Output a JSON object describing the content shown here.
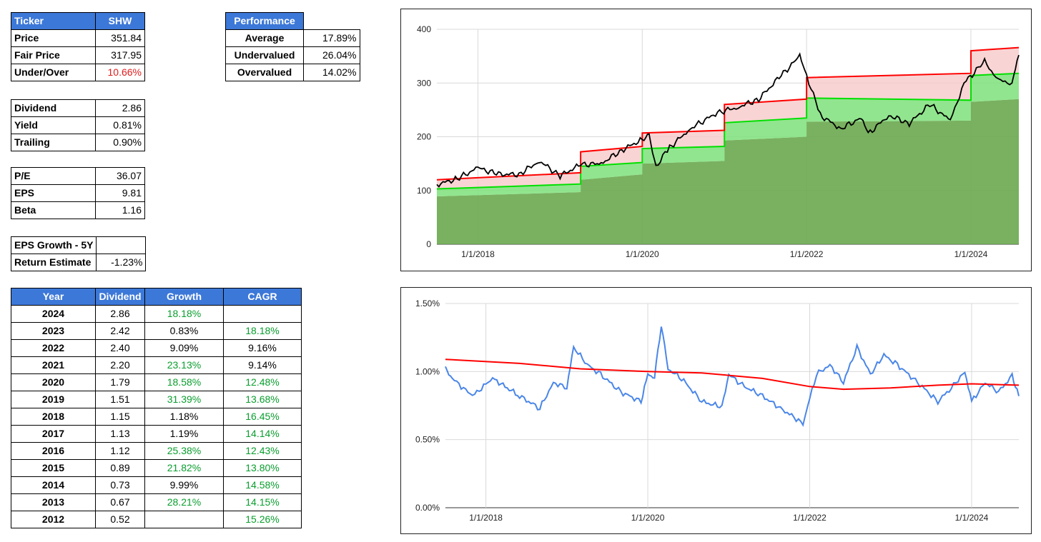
{
  "ticker_table": {
    "header": [
      "Ticker",
      "SHW"
    ],
    "rows": [
      {
        "label": "Price",
        "value": "351.84"
      },
      {
        "label": "Fair Price",
        "value": "317.95"
      },
      {
        "label": "Under/Over",
        "value": "10.66%"
      }
    ]
  },
  "performance_table": {
    "header": "Performance",
    "rows": [
      {
        "label": "Average",
        "value": "17.89%"
      },
      {
        "label": "Undervalued",
        "value": "26.04%"
      },
      {
        "label": "Overvalued",
        "value": "14.02%"
      }
    ]
  },
  "dividend_table": {
    "rows": [
      {
        "label": "Dividend",
        "value": "2.86"
      },
      {
        "label": "Yield",
        "value": "0.81%"
      },
      {
        "label": "Trailing",
        "value": "0.90%"
      }
    ]
  },
  "valuation_table": {
    "rows": [
      {
        "label": "P/E",
        "value": "36.07"
      },
      {
        "label": "EPS",
        "value": "9.81"
      },
      {
        "label": "Beta",
        "value": "1.16"
      }
    ]
  },
  "growth_table": {
    "rows": [
      {
        "label": "EPS Growth - 5Y",
        "value": ""
      },
      {
        "label": "Return Estimate",
        "value": "-1.23%"
      }
    ]
  },
  "history_table": {
    "headers": [
      "Year",
      "Dividend",
      "Growth",
      "CAGR"
    ],
    "rows": [
      {
        "year": "2024",
        "dividend": "2.86",
        "growth": "18.18%",
        "cagr": ""
      },
      {
        "year": "2023",
        "dividend": "2.42",
        "growth": "0.83%",
        "cagr": "18.18%"
      },
      {
        "year": "2022",
        "dividend": "2.40",
        "growth": "9.09%",
        "cagr": "9.16%"
      },
      {
        "year": "2021",
        "dividend": "2.20",
        "growth": "23.13%",
        "cagr": "9.14%"
      },
      {
        "year": "2020",
        "dividend": "1.79",
        "growth": "18.58%",
        "cagr": "12.48%"
      },
      {
        "year": "2019",
        "dividend": "1.51",
        "growth": "31.39%",
        "cagr": "13.68%"
      },
      {
        "year": "2018",
        "dividend": "1.15",
        "growth": "1.18%",
        "cagr": "16.45%"
      },
      {
        "year": "2017",
        "dividend": "1.13",
        "growth": "1.19%",
        "cagr": "14.14%"
      },
      {
        "year": "2016",
        "dividend": "1.12",
        "growth": "25.38%",
        "cagr": "12.43%"
      },
      {
        "year": "2015",
        "dividend": "0.89",
        "growth": "21.82%",
        "cagr": "13.80%"
      },
      {
        "year": "2014",
        "dividend": "0.73",
        "growth": "9.99%",
        "cagr": "14.58%"
      },
      {
        "year": "2013",
        "dividend": "0.67",
        "growth": "28.21%",
        "cagr": "14.15%"
      },
      {
        "year": "2012",
        "dividend": "0.52",
        "growth": "",
        "cagr": "15.26%"
      }
    ]
  },
  "colors": {
    "header_blue": "#3c78d8",
    "positive_green": "#0a9e2e",
    "negative_red": "#e21b1b",
    "price_line": "#000000",
    "overvalued_red": "#ff0000",
    "fair_green": "#00e000",
    "base_fill": "#6aa84f",
    "yield_blue": "#4a86e8"
  },
  "chart_data": [
    {
      "type": "area",
      "title": "",
      "x_ticks": [
        "1/1/2018",
        "1/1/2020",
        "1/1/2022",
        "1/1/2024"
      ],
      "y_ticks": [
        "0",
        "100",
        "200",
        "300",
        "400"
      ],
      "ylim": [
        0,
        400
      ],
      "xlim": [
        "2017-07-01",
        "2024-08-01"
      ],
      "grid": true,
      "series": [
        {
          "role": "price",
          "color": "#000000",
          "x": [
            "2017-07",
            "2017-10",
            "2018-01",
            "2018-04",
            "2018-07",
            "2018-10",
            "2019-01",
            "2019-04",
            "2019-07",
            "2019-10",
            "2020-01",
            "2020-02",
            "2020-03",
            "2020-05",
            "2020-08",
            "2020-12",
            "2021-03",
            "2021-06",
            "2021-09",
            "2021-12",
            "2022-01",
            "2022-03",
            "2022-06",
            "2022-09",
            "2022-10",
            "2023-01",
            "2023-04",
            "2023-07",
            "2023-10",
            "2023-12",
            "2024-03",
            "2024-05",
            "2024-07",
            "2024-08"
          ],
          "values": [
            111,
            122,
            142,
            130,
            130,
            155,
            127,
            148,
            150,
            175,
            195,
            200,
            145,
            180,
            215,
            245,
            255,
            270,
            310,
            350,
            315,
            240,
            215,
            235,
            205,
            240,
            225,
            260,
            230,
            300,
            340,
            305,
            300,
            352
          ]
        },
        {
          "role": "overvalued-band",
          "color": "#ff0000",
          "x": [
            "2017-07",
            "2019-04",
            "2019-04",
            "2020-01",
            "2020-01",
            "2021-01",
            "2021-01",
            "2022-01",
            "2022-01",
            "2024-01",
            "2024-01",
            "2024-08"
          ],
          "values": [
            120,
            133,
            172,
            182,
            207,
            212,
            260,
            270,
            310,
            318,
            360,
            366
          ]
        },
        {
          "role": "fair-band",
          "color": "#00e000",
          "x": [
            "2017-07",
            "2019-04",
            "2019-04",
            "2020-01",
            "2020-01",
            "2021-01",
            "2021-01",
            "2022-01",
            "2022-01",
            "2024-01",
            "2024-01",
            "2024-08"
          ],
          "values": [
            103,
            112,
            145,
            152,
            178,
            182,
            226,
            235,
            272,
            268,
            314,
            318
          ]
        },
        {
          "role": "base",
          "color": "#6aa84f",
          "x": [
            "2017-07",
            "2019-04",
            "2019-04",
            "2020-01",
            "2020-01",
            "2021-01",
            "2021-01",
            "2022-01",
            "2022-01",
            "2024-01",
            "2024-01",
            "2024-08"
          ],
          "values": [
            89,
            97,
            120,
            130,
            150,
            155,
            193,
            200,
            228,
            230,
            265,
            270
          ]
        }
      ]
    },
    {
      "type": "line",
      "title": "",
      "x_ticks": [
        "1/1/2018",
        "1/1/2020",
        "1/1/2022",
        "1/1/2024"
      ],
      "y_ticks": [
        "0.00%",
        "0.50%",
        "1.00%",
        "1.50%"
      ],
      "ylim": [
        0,
        1.5
      ],
      "xlim": [
        "2017-07-01",
        "2024-08-01"
      ],
      "grid": true,
      "series": [
        {
          "role": "dividend-yield",
          "color": "#4a86e8",
          "x": [
            "2017-07",
            "2017-08",
            "2017-11",
            "2018-02",
            "2018-06",
            "2018-09",
            "2018-11",
            "2019-01",
            "2019-02",
            "2019-04",
            "2019-06",
            "2019-09",
            "2019-12",
            "2020-01",
            "2020-02",
            "2020-03",
            "2020-04",
            "2020-06",
            "2020-09",
            "2020-12",
            "2021-01",
            "2021-03",
            "2021-06",
            "2021-09",
            "2021-12",
            "2022-02",
            "2022-04",
            "2022-06",
            "2022-08",
            "2022-10",
            "2022-12",
            "2023-02",
            "2023-05",
            "2023-08",
            "2023-10",
            "2023-12",
            "2024-01",
            "2024-03",
            "2024-05",
            "2024-07",
            "2024-08"
          ],
          "values": [
            1.02,
            0.95,
            0.82,
            0.95,
            0.82,
            0.73,
            0.92,
            0.88,
            1.18,
            1.05,
            0.98,
            0.85,
            0.78,
            0.98,
            0.96,
            1.35,
            1.02,
            0.95,
            0.78,
            0.74,
            0.98,
            0.9,
            0.82,
            0.72,
            0.62,
            0.98,
            1.05,
            0.92,
            1.18,
            0.98,
            1.12,
            1.05,
            0.92,
            0.78,
            0.88,
            1.0,
            0.78,
            0.92,
            0.85,
            0.97,
            0.82
          ]
        },
        {
          "role": "average-yield",
          "color": "#ff0000",
          "x": [
            "2017-07",
            "2018-06",
            "2019-03",
            "2020-01",
            "2020-09",
            "2021-06",
            "2022-01",
            "2022-06",
            "2023-01",
            "2023-08",
            "2024-01",
            "2024-08"
          ],
          "values": [
            1.09,
            1.06,
            1.02,
            1.0,
            0.99,
            0.95,
            0.89,
            0.87,
            0.88,
            0.9,
            0.91,
            0.9
          ]
        }
      ]
    }
  ]
}
